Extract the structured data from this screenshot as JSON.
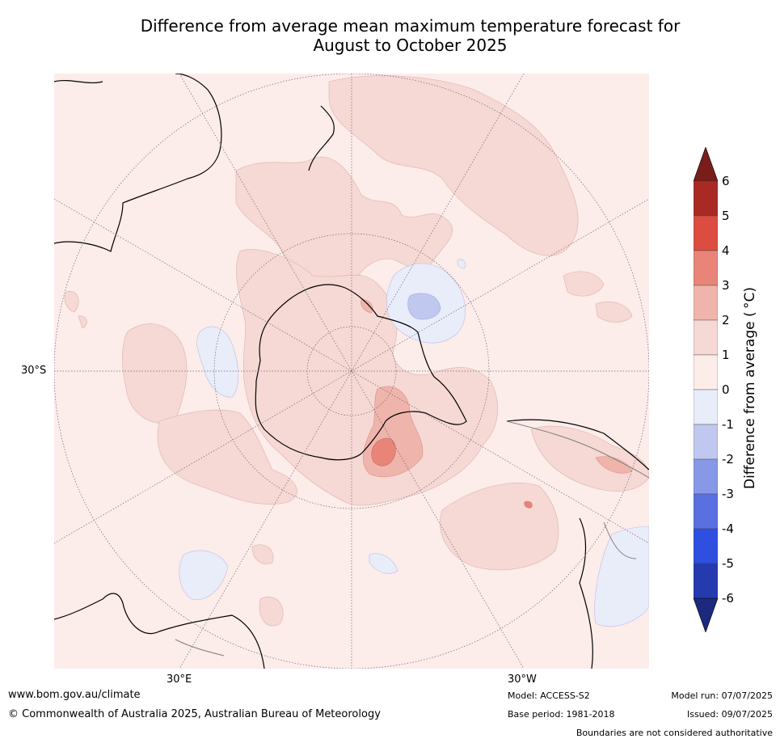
{
  "title_line1": "Difference from average mean maximum temperature forecast for",
  "title_line2": "August to October 2025",
  "map": {
    "projection": "south-polar stereographic",
    "lat_label": "30°S",
    "lon_labels": [
      "30°E",
      "30°W"
    ],
    "grid": "dotted"
  },
  "colorbar": {
    "title": "Difference from average ( °C)",
    "ticks": [
      "6",
      "5",
      "4",
      "3",
      "2",
      "1",
      "0",
      "-1",
      "-2",
      "-3",
      "-4",
      "-5",
      "-6"
    ],
    "colors": [
      "#7a1d1a",
      "#a92a24",
      "#dc4c41",
      "#e88578",
      "#efb4ab",
      "#f6d8d4",
      "#fcecea",
      "#e9ecf9",
      "#c0c8f0",
      "#8798e6",
      "#5a70e0",
      "#2e4fe0",
      "#243aae",
      "#1b2a7e"
    ],
    "extend": "both"
  },
  "footer": {
    "url": "www.bom.gov.au/climate",
    "copyright": "© Commonwealth of Australia 2025, Australian Bureau of Meteorology",
    "model": "Model: ACCESS-S2",
    "base_period": "Base period: 1981-2018",
    "model_run": "Model run: 07/07/2025",
    "issued": "Issued: 09/07/2025",
    "disclaimer": "Boundaries are not considered authoritative"
  }
}
